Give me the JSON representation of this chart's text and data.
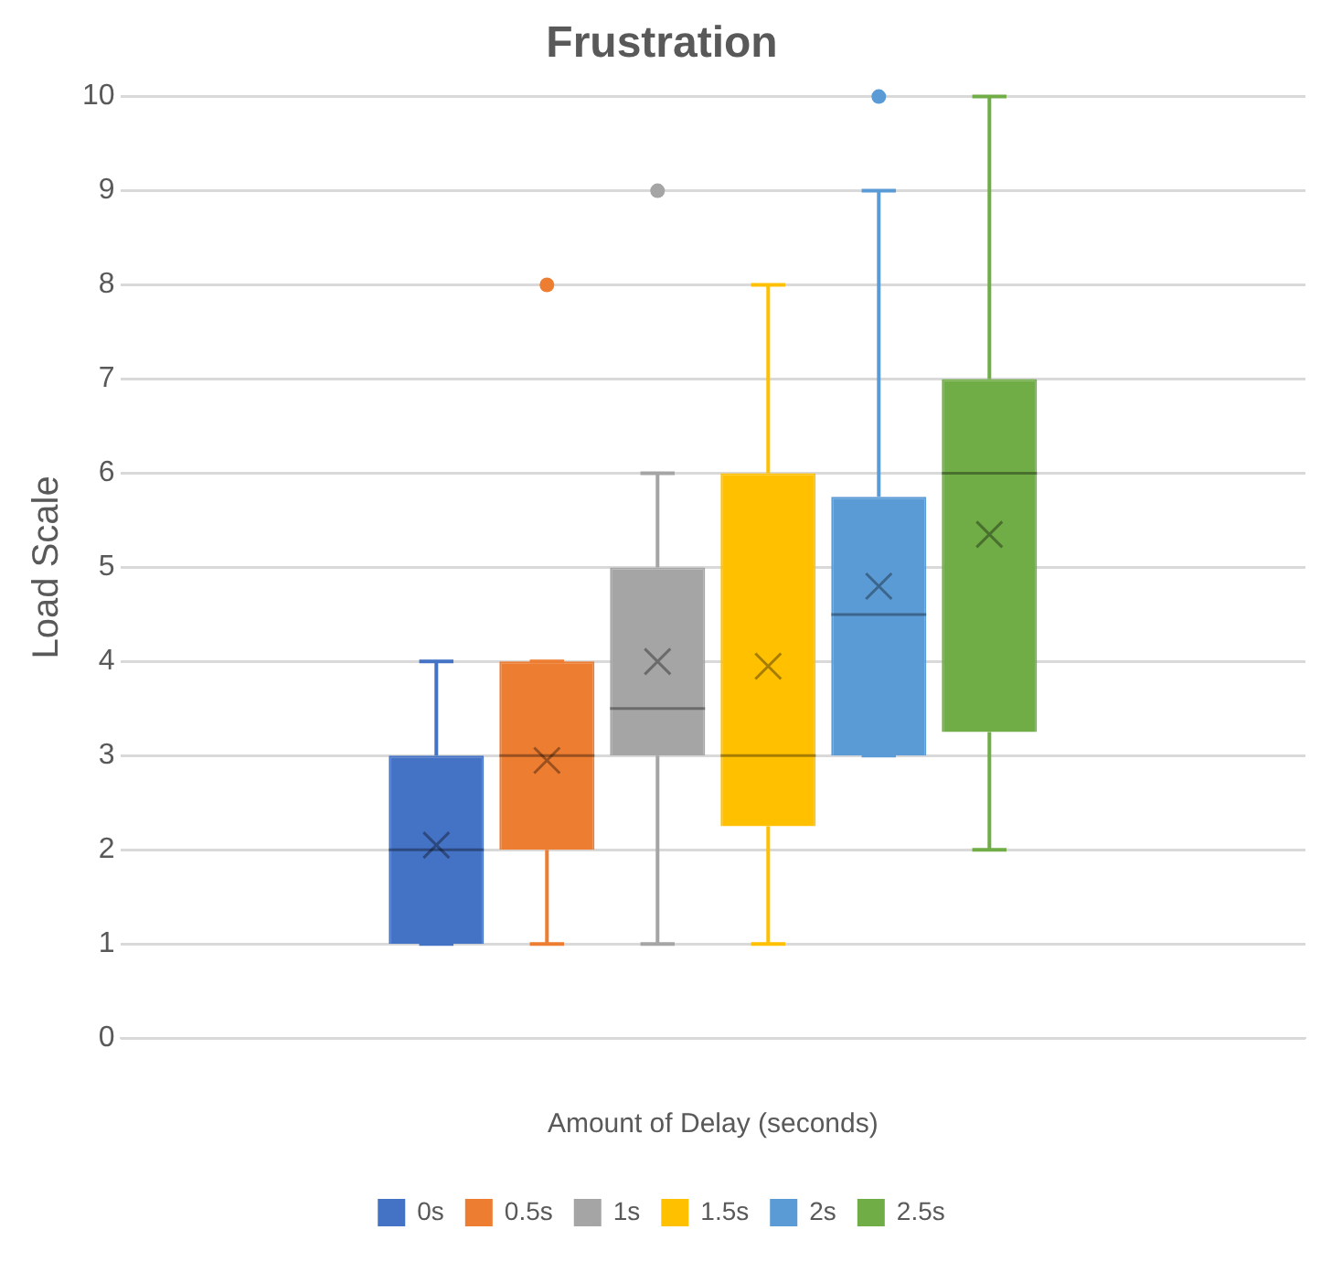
{
  "chart_data": {
    "type": "box",
    "title": "Frustration",
    "xlabel": "Amount of Delay (seconds)",
    "ylabel": "Load Scale",
    "categories": [
      null
    ],
    "ylim": [
      0,
      10
    ],
    "yticks": [
      0,
      1,
      2,
      3,
      4,
      5,
      6,
      7,
      8,
      9,
      10
    ],
    "grid": "y",
    "legend": "bottom",
    "series": [
      {
        "name": "0s",
        "color": "#4472c4",
        "boxes": [
          {
            "low": 1,
            "q1": 1,
            "median": 2,
            "q3": 3,
            "high": 4,
            "mean": 2.05
          }
        ]
      },
      {
        "name": "0.5s",
        "color": "#ed7d31",
        "boxes": [
          {
            "low": 1,
            "q1": 2,
            "median": 3,
            "q3": 4,
            "high": 4,
            "mean": 2.95,
            "outliers": [
              8
            ]
          }
        ]
      },
      {
        "name": "1s",
        "color": "#a5a5a5",
        "boxes": [
          {
            "low": 1,
            "q1": 3,
            "median": 3.5,
            "q3": 5,
            "high": 6,
            "mean": 4,
            "outliers": [
              9
            ]
          }
        ]
      },
      {
        "name": "1.5s",
        "color": "#ffc000",
        "boxes": [
          {
            "low": 1,
            "q1": 2.25,
            "median": 3,
            "q3": 6,
            "high": 8,
            "mean": 3.95
          }
        ]
      },
      {
        "name": "2s",
        "color": "#5b9bd5",
        "boxes": [
          {
            "low": 3,
            "q1": 3,
            "median": 4.5,
            "q3": 5.75,
            "high": 9,
            "mean": 4.8,
            "outliers": [
              10
            ]
          }
        ]
      },
      {
        "name": "2.5s",
        "color": "#70ad47",
        "boxes": [
          {
            "low": 2,
            "q1": 3.25,
            "median": 6,
            "q3": 7,
            "high": 10,
            "mean": 5.35
          }
        ]
      }
    ]
  }
}
